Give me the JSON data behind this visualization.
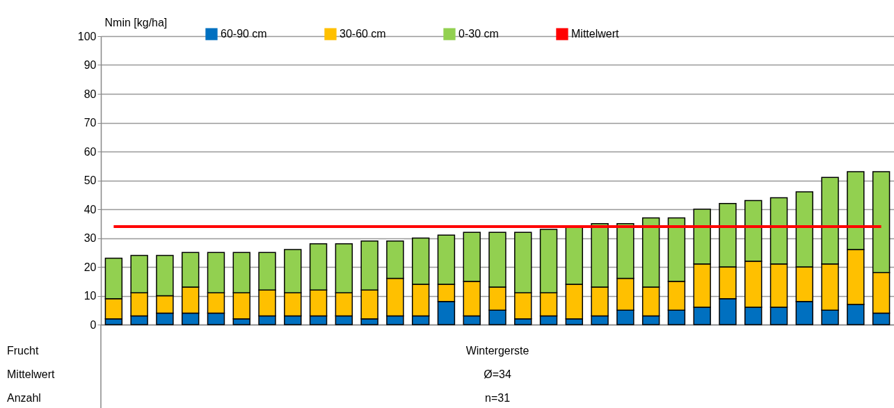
{
  "chart_data": {
    "type": "bar",
    "stacked": true,
    "ylabel": "Nmin [kg/ha]",
    "categories": [
      null,
      null,
      null,
      null,
      null,
      null,
      null,
      null,
      null,
      null,
      null,
      null,
      null,
      null,
      null,
      null,
      null,
      null,
      null,
      null,
      null,
      null,
      null,
      null,
      null,
      null,
      null,
      null,
      null,
      null,
      null
    ],
    "series": [
      {
        "name": "60-90 cm",
        "color": "#0070c0",
        "values": [
          2,
          3,
          4,
          4,
          4,
          2,
          3,
          3,
          3,
          3,
          2,
          3,
          3,
          8,
          3,
          5,
          2,
          3,
          2,
          3,
          5,
          3,
          5,
          6,
          9,
          6,
          6,
          8,
          5,
          7,
          4
        ]
      },
      {
        "name": "30-60 cm",
        "color": "#ffc000",
        "values": [
          7,
          8,
          6,
          9,
          7,
          9,
          9,
          8,
          9,
          8,
          10,
          13,
          11,
          6,
          12,
          8,
          9,
          8,
          12,
          10,
          11,
          10,
          10,
          15,
          11,
          16,
          15,
          12,
          16,
          19,
          14
        ]
      },
      {
        "name": "0-30 cm",
        "color": "#92d050",
        "values": [
          14,
          13,
          14,
          12,
          14,
          14,
          13,
          15,
          16,
          17,
          17,
          13,
          16,
          17,
          17,
          19,
          21,
          22,
          20,
          22,
          19,
          24,
          22,
          19,
          22,
          21,
          23,
          26,
          30,
          27,
          35
        ]
      },
      {
        "name": "Mittelwert",
        "type": "line",
        "color": "#ff0000",
        "values": [
          34,
          34,
          34,
          34,
          34,
          34,
          34,
          34,
          34,
          34,
          34,
          34,
          34,
          34,
          34,
          34,
          34,
          34,
          34,
          34,
          34,
          34,
          34,
          34,
          34,
          34,
          34,
          34,
          34,
          34,
          34
        ]
      }
    ],
    "ylim": [
      0,
      100
    ],
    "yticks": [
      0,
      10,
      20,
      30,
      40,
      50,
      60,
      70,
      80,
      90,
      100
    ],
    "grid": "y",
    "legend": "top",
    "tick_labels": "y",
    "annotations": [
      "Frucht",
      "Wintergerste",
      "Mittelwert",
      "Ø=34",
      "Anzahl",
      "n=31"
    ]
  }
}
